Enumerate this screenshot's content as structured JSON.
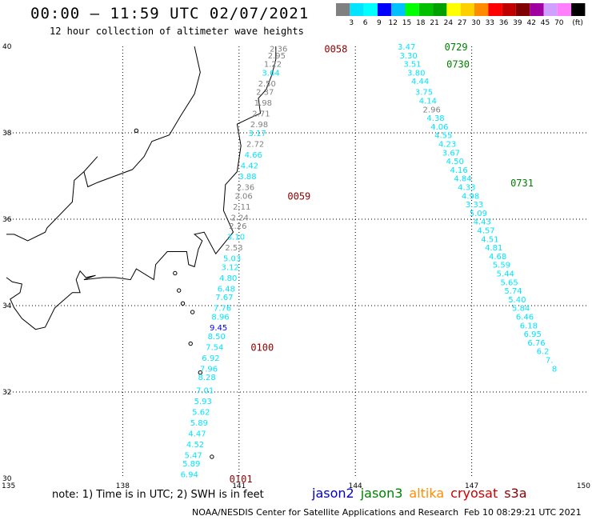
{
  "header": {
    "title": "00:00 – 11:59 UTC 02/07/2021",
    "subtitle": "12 hour collection of altimeter wave heights"
  },
  "colorbar": {
    "labels": [
      "3",
      "6",
      "9",
      "12",
      "15",
      "18",
      "21",
      "24",
      "27",
      "30",
      "33",
      "36",
      "39",
      "42",
      "45",
      "70"
    ],
    "unit": "(ft)",
    "colors": [
      "#808080",
      "#00e5ff",
      "#00ffff",
      "#0000ff",
      "#00c0ff",
      "#00ff00",
      "#00c000",
      "#00a000",
      "#ffff00",
      "#ffd000",
      "#ff8c00",
      "#ff0000",
      "#c00000",
      "#800000",
      "#a000a0",
      "#d0a0ff",
      "#ff80ff",
      "#000000"
    ]
  },
  "axes": {
    "lat_labels": [
      "40",
      "38",
      "36",
      "34",
      "32",
      "30"
    ],
    "lon_labels": [
      "135",
      "138",
      "141",
      "144",
      "147",
      "150"
    ]
  },
  "time_labels": [
    {
      "text": "0058",
      "color": "#8b0000",
      "lon": 143.2,
      "lat": 39.95
    },
    {
      "text": "0059",
      "color": "#8b0000",
      "lon": 142.25,
      "lat": 36.55
    },
    {
      "text": "0100",
      "color": "#8b0000",
      "lon": 141.3,
      "lat": 33.05
    },
    {
      "text": "0101",
      "color": "#8b0000",
      "lon": 140.75,
      "lat": 30.0
    },
    {
      "text": "0729",
      "color": "#008000",
      "lon": 146.3,
      "lat": 40.0
    },
    {
      "text": "0730",
      "color": "#008000",
      "lon": 146.35,
      "lat": 39.6
    },
    {
      "text": "0731",
      "color": "#008000",
      "lon": 148.0,
      "lat": 36.85
    }
  ],
  "tracks": [
    {
      "name": "cryosat",
      "points": [
        {
          "v": "2.36",
          "c": "#808080",
          "lon": 142.25,
          "lat": 39.95
        },
        {
          "v": "2.95",
          "c": "#808080",
          "lon": 142.2,
          "lat": 39.8
        },
        {
          "v": "1.22",
          "c": "#808080",
          "lon": 142.1,
          "lat": 39.6
        },
        {
          "v": "3.64",
          "c": "#00e5ff",
          "lon": 142.05,
          "lat": 39.4
        },
        {
          "v": "2.50",
          "c": "#808080",
          "lon": 141.95,
          "lat": 39.15
        },
        {
          "v": "2.37",
          "c": "#808080",
          "lon": 141.9,
          "lat": 38.95
        },
        {
          "v": "1.98",
          "c": "#808080",
          "lon": 141.85,
          "lat": 38.7
        },
        {
          "v": "2.71",
          "c": "#808080",
          "lon": 141.8,
          "lat": 38.45
        },
        {
          "v": "2.98",
          "c": "#808080",
          "lon": 141.75,
          "lat": 38.2
        },
        {
          "v": "3.17",
          "c": "#00e5ff",
          "lon": 141.7,
          "lat": 38.0
        },
        {
          "v": "2.72",
          "c": "#808080",
          "lon": 141.65,
          "lat": 37.75
        },
        {
          "v": "4.66",
          "c": "#00e5ff",
          "lon": 141.6,
          "lat": 37.5
        },
        {
          "v": "4.42",
          "c": "#00e5ff",
          "lon": 141.5,
          "lat": 37.25
        },
        {
          "v": "3.88",
          "c": "#00e5ff",
          "lon": 141.45,
          "lat": 37.0
        },
        {
          "v": "2.36",
          "c": "#808080",
          "lon": 141.4,
          "lat": 36.75
        },
        {
          "v": "2.06",
          "c": "#808080",
          "lon": 141.35,
          "lat": 36.55
        },
        {
          "v": "2.11",
          "c": "#808080",
          "lon": 141.3,
          "lat": 36.3
        },
        {
          "v": "2.24",
          "c": "#808080",
          "lon": 141.25,
          "lat": 36.05
        },
        {
          "v": "2.26",
          "c": "#808080",
          "lon": 141.2,
          "lat": 35.85
        },
        {
          "v": "3.10",
          "c": "#00e5ff",
          "lon": 141.15,
          "lat": 35.6
        },
        {
          "v": "2.53",
          "c": "#808080",
          "lon": 141.1,
          "lat": 35.35
        },
        {
          "v": "5.03",
          "c": "#00e5ff",
          "lon": 141.05,
          "lat": 35.1
        },
        {
          "v": "3.12",
          "c": "#00e5ff",
          "lon": 141.0,
          "lat": 34.9
        },
        {
          "v": "4.80",
          "c": "#00e5ff",
          "lon": 140.95,
          "lat": 34.65
        },
        {
          "v": "6.48",
          "c": "#00e5ff",
          "lon": 140.9,
          "lat": 34.4
        },
        {
          "v": "7.67",
          "c": "#00e5ff",
          "lon": 140.85,
          "lat": 34.2
        },
        {
          "v": "7.76",
          "c": "#00e5ff",
          "lon": 140.8,
          "lat": 33.95
        },
        {
          "v": "8.96",
          "c": "#00e5ff",
          "lon": 140.75,
          "lat": 33.75
        },
        {
          "v": "9.45",
          "c": "#0000ff",
          "lon": 140.7,
          "lat": 33.5
        },
        {
          "v": "8.50",
          "c": "#00e5ff",
          "lon": 140.65,
          "lat": 33.3
        },
        {
          "v": "7.54",
          "c": "#00e5ff",
          "lon": 140.6,
          "lat": 33.05
        },
        {
          "v": "6.92",
          "c": "#00e5ff",
          "lon": 140.5,
          "lat": 32.8
        },
        {
          "v": "7.96",
          "c": "#00e5ff",
          "lon": 140.45,
          "lat": 32.55
        },
        {
          "v": "8.28",
          "c": "#00e5ff",
          "lon": 140.4,
          "lat": 32.35
        },
        {
          "v": "7.01",
          "c": "#00e5ff",
          "lon": 140.35,
          "lat": 32.05
        },
        {
          "v": "5.93",
          "c": "#00e5ff",
          "lon": 140.3,
          "lat": 31.8
        },
        {
          "v": "5.62",
          "c": "#00e5ff",
          "lon": 140.25,
          "lat": 31.55
        },
        {
          "v": "5.89",
          "c": "#00e5ff",
          "lon": 140.2,
          "lat": 31.3
        },
        {
          "v": "4.47",
          "c": "#00e5ff",
          "lon": 140.15,
          "lat": 31.05
        },
        {
          "v": "4.52",
          "c": "#00e5ff",
          "lon": 140.1,
          "lat": 30.8
        },
        {
          "v": "5.47",
          "c": "#00e5ff",
          "lon": 140.05,
          "lat": 30.55
        },
        {
          "v": "5.89",
          "c": "#00e5ff",
          "lon": 140.0,
          "lat": 30.35
        },
        {
          "v": "6.94",
          "c": "#00e5ff",
          "lon": 139.95,
          "lat": 30.1
        }
      ]
    },
    {
      "name": "jason3",
      "points": [
        {
          "v": "3.47",
          "c": "#00e5ff",
          "lon": 145.55,
          "lat": 40.0
        },
        {
          "v": "3.30",
          "c": "#00e5ff",
          "lon": 145.6,
          "lat": 39.8
        },
        {
          "v": "3.51",
          "c": "#00e5ff",
          "lon": 145.7,
          "lat": 39.6
        },
        {
          "v": "3.80",
          "c": "#00e5ff",
          "lon": 145.8,
          "lat": 39.4
        },
        {
          "v": "4.44",
          "c": "#00e5ff",
          "lon": 145.9,
          "lat": 39.2
        },
        {
          "v": "3.75",
          "c": "#00e5ff",
          "lon": 146.0,
          "lat": 38.95
        },
        {
          "v": "4.14",
          "c": "#00e5ff",
          "lon": 146.1,
          "lat": 38.75
        },
        {
          "v": "2.96",
          "c": "#808080",
          "lon": 146.2,
          "lat": 38.55
        },
        {
          "v": "4.38",
          "c": "#00e5ff",
          "lon": 146.3,
          "lat": 38.35
        },
        {
          "v": "4.06",
          "c": "#00e5ff",
          "lon": 146.4,
          "lat": 38.15
        },
        {
          "v": "4.55",
          "c": "#00e5ff",
          "lon": 146.5,
          "lat": 37.95
        },
        {
          "v": "4.23",
          "c": "#00e5ff",
          "lon": 146.6,
          "lat": 37.75
        },
        {
          "v": "3.67",
          "c": "#00e5ff",
          "lon": 146.7,
          "lat": 37.55
        },
        {
          "v": "4.50",
          "c": "#00e5ff",
          "lon": 146.8,
          "lat": 37.35
        },
        {
          "v": "4.16",
          "c": "#00e5ff",
          "lon": 146.9,
          "lat": 37.15
        },
        {
          "v": "4.84",
          "c": "#00e5ff",
          "lon": 147.0,
          "lat": 36.95
        },
        {
          "v": "4.33",
          "c": "#00e5ff",
          "lon": 147.1,
          "lat": 36.75
        },
        {
          "v": "4.98",
          "c": "#00e5ff",
          "lon": 147.2,
          "lat": 36.55
        },
        {
          "v": "3.33",
          "c": "#00e5ff",
          "lon": 147.3,
          "lat": 36.35
        },
        {
          "v": "5.09",
          "c": "#00e5ff",
          "lon": 147.4,
          "lat": 36.15
        },
        {
          "v": "4.43",
          "c": "#00e5ff",
          "lon": 147.5,
          "lat": 35.95
        },
        {
          "v": "4.57",
          "c": "#00e5ff",
          "lon": 147.6,
          "lat": 35.75
        },
        {
          "v": "4.51",
          "c": "#00e5ff",
          "lon": 147.7,
          "lat": 35.55
        },
        {
          "v": "4.81",
          "c": "#00e5ff",
          "lon": 147.8,
          "lat": 35.35
        },
        {
          "v": "4.68",
          "c": "#00e5ff",
          "lon": 147.9,
          "lat": 35.15
        },
        {
          "v": "5.59",
          "c": "#00e5ff",
          "lon": 148.0,
          "lat": 34.95
        },
        {
          "v": "5.44",
          "c": "#00e5ff",
          "lon": 148.1,
          "lat": 34.75
        },
        {
          "v": "5.65",
          "c": "#00e5ff",
          "lon": 148.2,
          "lat": 34.55
        },
        {
          "v": "5.74",
          "c": "#00e5ff",
          "lon": 148.3,
          "lat": 34.35
        },
        {
          "v": "5.40",
          "c": "#00e5ff",
          "lon": 148.4,
          "lat": 34.15
        },
        {
          "v": "5.84",
          "c": "#00e5ff",
          "lon": 148.5,
          "lat": 33.95
        },
        {
          "v": "6.46",
          "c": "#00e5ff",
          "lon": 148.6,
          "lat": 33.75
        },
        {
          "v": "6.18",
          "c": "#00e5ff",
          "lon": 148.7,
          "lat": 33.55
        },
        {
          "v": "6.95",
          "c": "#00e5ff",
          "lon": 148.8,
          "lat": 33.35
        },
        {
          "v": "6.76",
          "c": "#00e5ff",
          "lon": 148.9,
          "lat": 33.15
        },
        {
          "v": "6.2",
          "c": "#00e5ff",
          "lon": 149.0,
          "lat": 32.95
        },
        {
          "v": "7.",
          "c": "#00e5ff",
          "lon": 149.1,
          "lat": 32.75
        },
        {
          "v": "8",
          "c": "#00e5ff",
          "lon": 149.2,
          "lat": 32.55
        }
      ]
    }
  ],
  "footer": {
    "note": "note:  1) Time is in UTC;  2) SWH is in feet",
    "legend": [
      {
        "label": "jason2",
        "color": "#0000cc"
      },
      {
        "label": "jason3",
        "color": "#008000"
      },
      {
        "label": "altika",
        "color": "#ff8c00"
      },
      {
        "label": "cryosat",
        "color": "#cc0000"
      },
      {
        "label": "s3a",
        "color": "#8b0000"
      }
    ],
    "credit": "NOAA/NESDIS Center for Satellite Applications and Research",
    "timestamp": "Feb 10 08:29:21 UTC 2021"
  }
}
